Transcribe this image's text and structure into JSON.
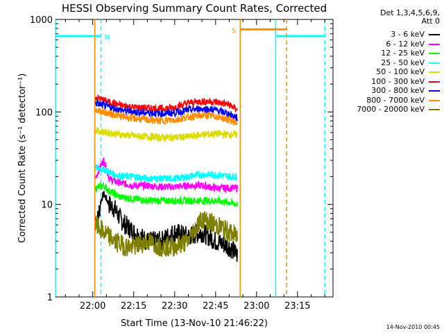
{
  "chart_data": {
    "type": "line",
    "title": "HESSI Observing Summary Count Rates, Corrected",
    "xlabel": "Start Time (13-Nov-10 21:46:22)",
    "ylabel": "Corrected Count Rate (s⁻¹ detector⁻¹)",
    "ylog": true,
    "ylim": [
      1,
      1000
    ],
    "xlim": [
      "21:46:22",
      "23:28:00"
    ],
    "x_ticks": [
      "22:00",
      "22:15",
      "22:30",
      "22:45",
      "23:00",
      "23:15"
    ],
    "y_ticks": [
      "1",
      "10",
      "100",
      "1000"
    ],
    "legend_header": [
      "Det 1,3,4,5,6,9,",
      "Att 0"
    ],
    "series": [
      {
        "name": "3 - 6 keV",
        "color": "#000000",
        "x": [
          "22:01",
          "22:02",
          "22:03",
          "22:04",
          "22:06",
          "22:08",
          "22:10",
          "22:12",
          "22:15",
          "22:20",
          "22:25",
          "22:30",
          "22:35",
          "22:40",
          "22:45",
          "22:50",
          "22:53"
        ],
        "values": [
          7,
          7,
          11,
          13,
          10,
          9,
          7,
          6,
          5,
          4,
          4,
          5,
          4.5,
          5,
          4,
          3.5,
          2.8
        ]
      },
      {
        "name": "6 - 12 keV",
        "color": "#ff00ff",
        "x": [
          "22:01",
          "22:04",
          "22:06",
          "22:10",
          "22:15",
          "22:20",
          "22:25",
          "22:30",
          "22:35",
          "22:40",
          "22:45",
          "22:50",
          "22:53"
        ],
        "values": [
          19,
          30,
          19,
          17,
          16,
          16,
          15.5,
          15.5,
          16,
          16,
          15,
          15,
          15
        ]
      },
      {
        "name": "12 - 25 keV",
        "color": "#00ff00",
        "x": [
          "22:01",
          "22:04",
          "22:06",
          "22:10",
          "22:15",
          "22:20",
          "22:25",
          "22:30",
          "22:35",
          "22:40",
          "22:45",
          "22:50",
          "22:53"
        ],
        "values": [
          15,
          16,
          14,
          12,
          11.5,
          11,
          11,
          11,
          11,
          11,
          11,
          10.5,
          10
        ]
      },
      {
        "name": "25 - 50 keV",
        "color": "#00ffff",
        "x": [
          "22:01",
          "22:04",
          "22:08",
          "22:12",
          "22:15",
          "22:20",
          "22:25",
          "22:30",
          "22:35",
          "22:40",
          "22:45",
          "22:50",
          "22:53"
        ],
        "values": [
          25,
          24,
          21,
          20,
          20,
          19,
          19,
          19,
          20,
          21,
          21,
          20,
          20
        ]
      },
      {
        "name": "50 - 100 keV",
        "color": "#dcdc00",
        "x": [
          "22:01",
          "22:05",
          "22:10",
          "22:15",
          "22:20",
          "22:25",
          "22:30",
          "22:35",
          "22:40",
          "22:45",
          "22:50",
          "22:53"
        ],
        "values": [
          63,
          60,
          57,
          55,
          54,
          53,
          53,
          54,
          57,
          58,
          57,
          57
        ]
      },
      {
        "name": "100 - 300 keV",
        "color": "#ff0000",
        "x": [
          "22:01",
          "22:05",
          "22:10",
          "22:15",
          "22:20",
          "22:25",
          "22:30",
          "22:35",
          "22:40",
          "22:45",
          "22:50",
          "22:53"
        ],
        "values": [
          145,
          130,
          118,
          112,
          110,
          108,
          112,
          125,
          130,
          128,
          120,
          105
        ]
      },
      {
        "name": "300 - 800 keV",
        "color": "#0000ff",
        "x": [
          "22:01",
          "22:05",
          "22:10",
          "22:15",
          "22:20",
          "22:25",
          "22:30",
          "22:35",
          "22:40",
          "22:45",
          "22:50",
          "22:53"
        ],
        "values": [
          125,
          115,
          105,
          100,
          98,
          96,
          98,
          105,
          108,
          105,
          95,
          85
        ]
      },
      {
        "name": "800 - 7000 keV",
        "color": "#ff8c00",
        "x": [
          "22:01",
          "22:05",
          "22:10",
          "22:15",
          "22:20",
          "22:25",
          "22:30",
          "22:35",
          "22:40",
          "22:45",
          "22:50",
          "22:53"
        ],
        "values": [
          105,
          98,
          90,
          85,
          82,
          80,
          82,
          88,
          92,
          90,
          82,
          75
        ]
      },
      {
        "name": "7000 - 20000 keV",
        "color": "#7f7f00",
        "x": [
          "22:01",
          "22:04",
          "22:08",
          "22:12",
          "22:15",
          "22:20",
          "22:25",
          "22:30",
          "22:35",
          "22:40",
          "22:45",
          "22:50",
          "22:53"
        ],
        "values": [
          6,
          5,
          4,
          3.5,
          3.5,
          4,
          3.5,
          3.5,
          4,
          7,
          6,
          5,
          4.5
        ]
      }
    ],
    "flags": [
      {
        "label": "N",
        "color": "#00ffff",
        "level": 660,
        "start": "21:46:22",
        "end": "22:03:00",
        "solid_lines": [
          "21:46:22"
        ],
        "dashed_lines": [
          "22:03:00"
        ]
      },
      {
        "label": "",
        "color": "#00ffff",
        "level": 660,
        "start": "23:07:00",
        "end": "23:25:00",
        "solid_lines": [
          "23:07:00"
        ],
        "dashed_lines": [
          "23:25:00"
        ]
      },
      {
        "label": "S",
        "color": "#ff8c00",
        "level": 780,
        "start": "22:54:00",
        "end": "23:11:00",
        "solid_lines": [
          "22:00:45",
          "22:54:00"
        ],
        "dashed_lines": [
          "23:11:00"
        ]
      }
    ]
  },
  "footer": {
    "timestamp": "14-Nov-2010 00:45"
  }
}
